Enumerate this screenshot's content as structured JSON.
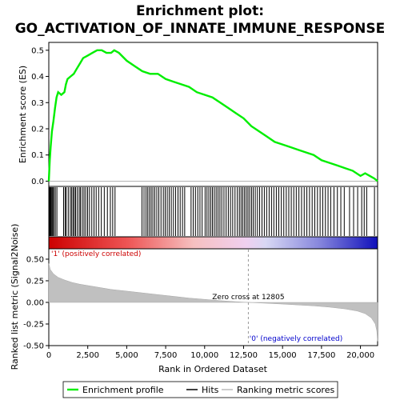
{
  "chart_data": {
    "type": "line",
    "title_line1": "Enrichment plot:",
    "title_line2": "GO_ACTIVATION_OF_INNATE_IMMUNE_RESPONSE",
    "es_panel": {
      "ylabel": "Enrichment score (ES)",
      "ylim": [
        -0.02,
        0.53
      ],
      "yticks": [
        "0.0",
        "0.1",
        "0.2",
        "0.3",
        "0.4",
        "0.5"
      ],
      "ytick_values": [
        0.0,
        0.1,
        0.2,
        0.3,
        0.4,
        0.5
      ],
      "line_color": "#00ee00",
      "points": [
        [
          0,
          0.0
        ],
        [
          60,
          0.08
        ],
        [
          120,
          0.13
        ],
        [
          200,
          0.19
        ],
        [
          300,
          0.23
        ],
        [
          400,
          0.28
        ],
        [
          500,
          0.32
        ],
        [
          600,
          0.34
        ],
        [
          800,
          0.33
        ],
        [
          1000,
          0.34
        ],
        [
          1100,
          0.37
        ],
        [
          1200,
          0.39
        ],
        [
          1400,
          0.4
        ],
        [
          1600,
          0.41
        ],
        [
          1800,
          0.43
        ],
        [
          2000,
          0.45
        ],
        [
          2200,
          0.47
        ],
        [
          2500,
          0.48
        ],
        [
          2800,
          0.49
        ],
        [
          3100,
          0.5
        ],
        [
          3400,
          0.5
        ],
        [
          3700,
          0.49
        ],
        [
          4000,
          0.49
        ],
        [
          4200,
          0.5
        ],
        [
          4500,
          0.49
        ],
        [
          5000,
          0.46
        ],
        [
          5500,
          0.44
        ],
        [
          6000,
          0.42
        ],
        [
          6500,
          0.41
        ],
        [
          7000,
          0.41
        ],
        [
          7500,
          0.39
        ],
        [
          8000,
          0.38
        ],
        [
          8500,
          0.37
        ],
        [
          9000,
          0.36
        ],
        [
          9500,
          0.34
        ],
        [
          10000,
          0.33
        ],
        [
          10500,
          0.32
        ],
        [
          11000,
          0.3
        ],
        [
          11500,
          0.28
        ],
        [
          12000,
          0.26
        ],
        [
          12500,
          0.24
        ],
        [
          13000,
          0.21
        ],
        [
          13500,
          0.19
        ],
        [
          14000,
          0.17
        ],
        [
          14500,
          0.15
        ],
        [
          15000,
          0.14
        ],
        [
          15500,
          0.13
        ],
        [
          16000,
          0.12
        ],
        [
          16500,
          0.11
        ],
        [
          17000,
          0.1
        ],
        [
          17500,
          0.08
        ],
        [
          18000,
          0.07
        ],
        [
          18500,
          0.06
        ],
        [
          19000,
          0.05
        ],
        [
          19500,
          0.04
        ],
        [
          20000,
          0.02
        ],
        [
          20300,
          0.03
        ],
        [
          20600,
          0.02
        ],
        [
          20900,
          0.01
        ],
        [
          21100,
          0.0
        ]
      ]
    },
    "hits": [
      20,
      60,
      100,
      150,
      210,
      260,
      330,
      420,
      520,
      950,
      1050,
      1120,
      1250,
      1380,
      1470,
      1560,
      1640,
      1720,
      1830,
      1950,
      2030,
      2150,
      2260,
      2370,
      2490,
      2610,
      2760,
      2900,
      3040,
      3200,
      3370,
      3560,
      3760,
      3950,
      4100,
      4250,
      5980,
      6110,
      6240,
      6350,
      6460,
      6570,
      6680,
      6800,
      6930,
      7060,
      7200,
      7350,
      7470,
      7600,
      7730,
      7860,
      8000,
      8140,
      8290,
      8430,
      8580,
      8720,
      9130,
      9270,
      9410,
      9560,
      9700,
      9840,
      10030,
      10150,
      10270,
      10390,
      10500,
      10620,
      10740,
      10860,
      10980,
      11100,
      11240,
      11380,
      11520,
      11660,
      11800,
      11950,
      12100,
      12230,
      12340,
      12450,
      12560,
      12670,
      12780,
      12890,
      13010,
      13120,
      13250,
      13390,
      13530,
      13680,
      13830,
      13980,
      14140,
      14290,
      14440,
      14600,
      14760,
      14920,
      15080,
      15240,
      15400,
      15560,
      15720,
      15880,
      16050,
      16220,
      16390,
      16560,
      16730,
      16900,
      17070,
      17240,
      17410,
      17580,
      17750,
      17920,
      18090,
      18300,
      18520,
      18740,
      18960,
      19300,
      19560,
      19820,
      20080,
      20240,
      20400,
      20900
    ],
    "ranked_panel": {
      "ylabel": "Ranked list metric (Signal2Noise)",
      "ylim": [
        -0.5,
        0.62
      ],
      "yticks": [
        "0.50",
        "0.25",
        "0.00",
        "-0.25",
        "-0.50"
      ],
      "ytick_values": [
        0.5,
        0.25,
        0.0,
        -0.25,
        -0.5
      ],
      "metric_curve": [
        [
          0,
          0.45
        ],
        [
          100,
          0.38
        ],
        [
          300,
          0.33
        ],
        [
          600,
          0.29
        ],
        [
          1000,
          0.26
        ],
        [
          1500,
          0.23
        ],
        [
          2000,
          0.21
        ],
        [
          3000,
          0.18
        ],
        [
          4000,
          0.15
        ],
        [
          5000,
          0.13
        ],
        [
          6000,
          0.11
        ],
        [
          7000,
          0.09
        ],
        [
          8000,
          0.07
        ],
        [
          9000,
          0.05
        ],
        [
          10000,
          0.035
        ],
        [
          11000,
          0.02
        ],
        [
          12000,
          0.008
        ],
        [
          12805,
          0.0
        ],
        [
          14000,
          -0.01
        ],
        [
          15000,
          -0.02
        ],
        [
          16000,
          -0.03
        ],
        [
          17000,
          -0.04
        ],
        [
          18000,
          -0.055
        ],
        [
          19000,
          -0.075
        ],
        [
          19800,
          -0.1
        ],
        [
          20300,
          -0.13
        ],
        [
          20700,
          -0.18
        ],
        [
          20950,
          -0.25
        ],
        [
          21050,
          -0.33
        ],
        [
          21100,
          -0.45
        ]
      ],
      "zero_cross_label": "Zero cross at 12805",
      "zero_cross_x": 12805,
      "pos_label": "'1' (positively correlated)",
      "neg_label": "'0' (negatively correlated)",
      "pos_color": "#cc0000",
      "neg_color": "#0000cc"
    },
    "xlabel": "Rank in Ordered Dataset",
    "xlim": [
      0,
      21100
    ],
    "xticks": [
      "0",
      "2,500",
      "5,000",
      "7,500",
      "10,000",
      "12,500",
      "15,000",
      "17,500",
      "20,000"
    ],
    "xtick_values": [
      0,
      2500,
      5000,
      7500,
      10000,
      12500,
      15000,
      17500,
      20000
    ],
    "legend": {
      "items": [
        "Enrichment profile",
        "Hits",
        "Ranking metric scores"
      ],
      "colors": [
        "#00ee00",
        "#000000",
        "#bbbbbb"
      ]
    }
  }
}
